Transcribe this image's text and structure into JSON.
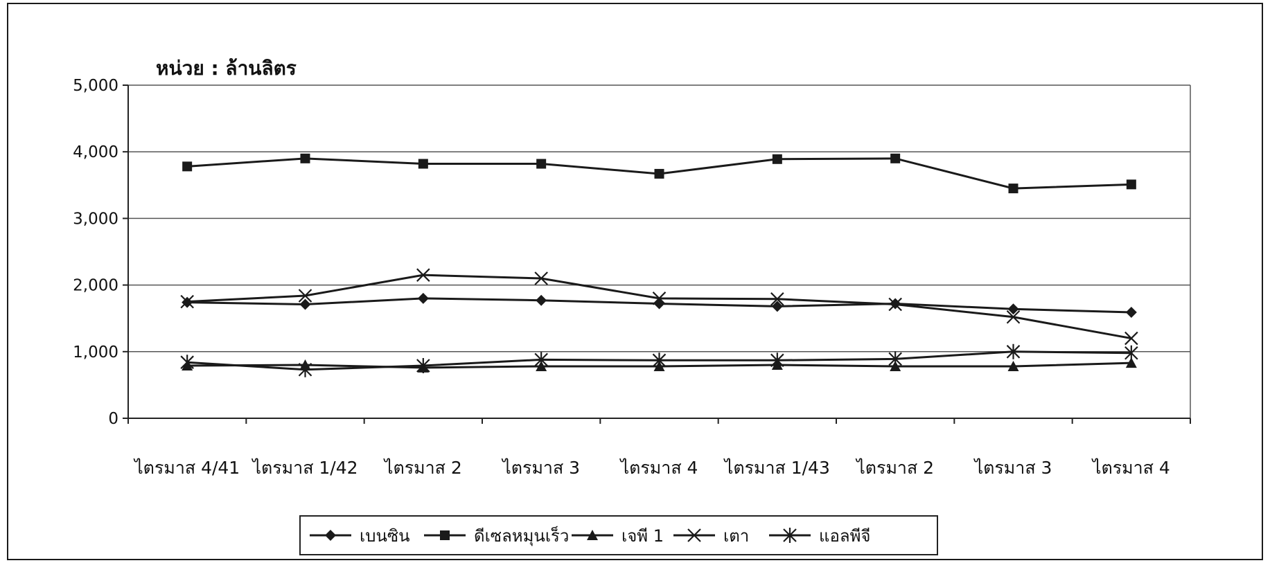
{
  "chart_data": {
    "type": "line",
    "unit_label": "หน่วย : ล้านลิตร",
    "categories": [
      "ไตรมาส 4/41",
      "ไตรมาส 1/42",
      "ไตรมาส 2",
      "ไตรมาส 3",
      "ไตรมาส 4",
      "ไตรมาส 1/43",
      "ไตรมาส 2",
      "ไตรมาส 3",
      "ไตรมาส 4"
    ],
    "ylim": [
      0,
      5000
    ],
    "yticks": [
      0,
      1000,
      2000,
      3000,
      4000,
      5000
    ],
    "ytick_labels": [
      "0",
      "1,000",
      "2,000",
      "3,000",
      "4,000",
      "5,000"
    ],
    "grid": true,
    "legend_position": "bottom",
    "series": [
      {
        "name": "เบนซิน",
        "marker": "diamond",
        "color": "#1a1a1a",
        "values": [
          1740,
          1710,
          1800,
          1770,
          1720,
          1680,
          1720,
          1640,
          1590
        ]
      },
      {
        "name": "ดีเซลหมุนเร็ว",
        "marker": "square",
        "color": "#1a1a1a",
        "values": [
          3780,
          3900,
          3820,
          3820,
          3670,
          3890,
          3900,
          3450,
          3510
        ]
      },
      {
        "name": "เจพี 1",
        "marker": "triangle",
        "color": "#1a1a1a",
        "values": [
          790,
          800,
          760,
          780,
          780,
          800,
          780,
          780,
          830
        ]
      },
      {
        "name": "เตา",
        "marker": "x",
        "color": "#1a1a1a",
        "values": [
          1750,
          1840,
          2150,
          2100,
          1800,
          1790,
          1710,
          1520,
          1200
        ]
      },
      {
        "name": "แอลพีจี",
        "marker": "star",
        "color": "#1a1a1a",
        "values": [
          840,
          730,
          790,
          880,
          870,
          870,
          890,
          1000,
          980
        ]
      }
    ]
  }
}
